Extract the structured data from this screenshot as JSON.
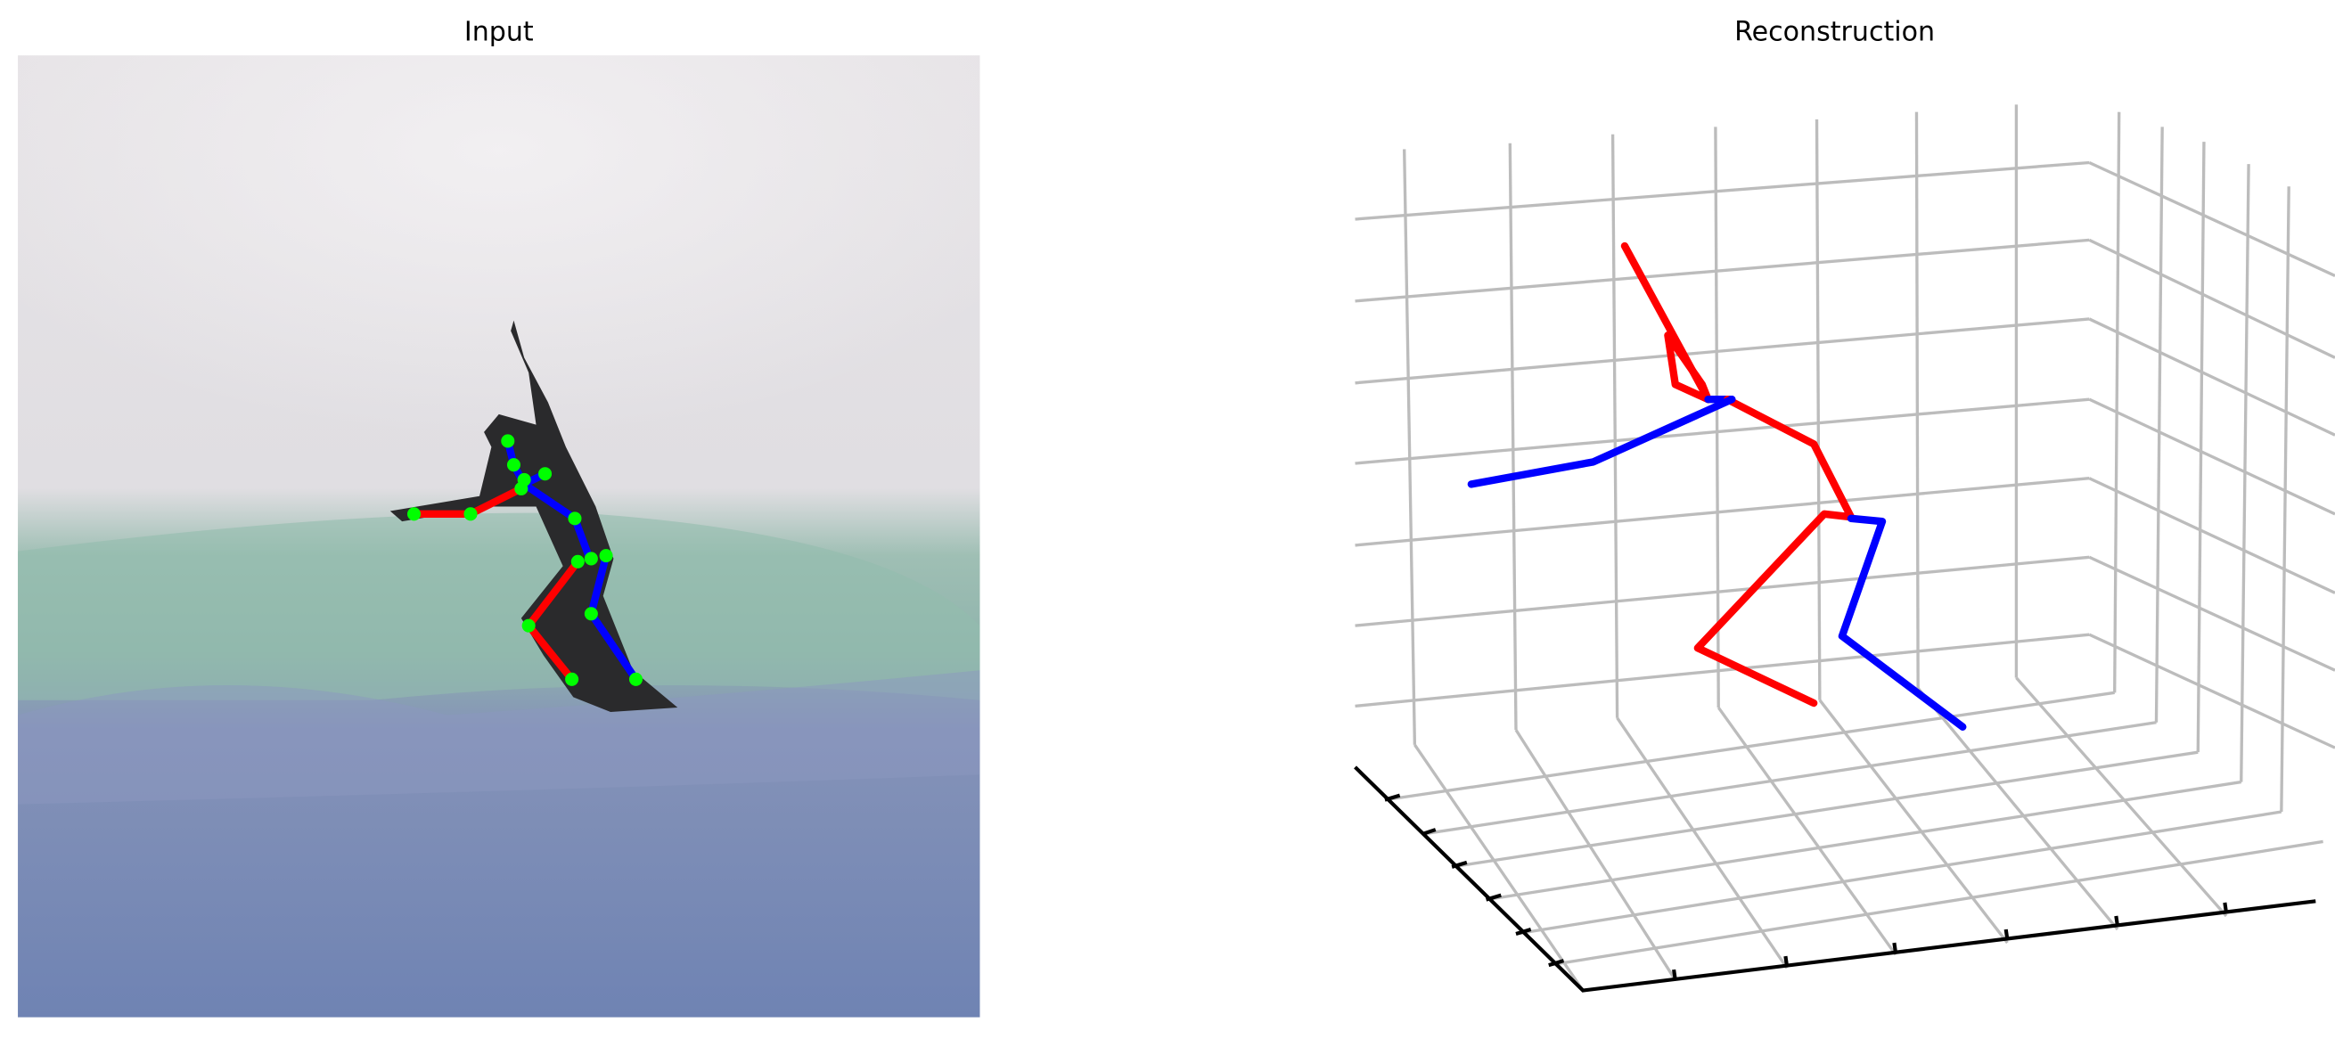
{
  "panels": [
    {
      "title": "Input"
    },
    {
      "title": "Reconstruction"
    }
  ]
}
